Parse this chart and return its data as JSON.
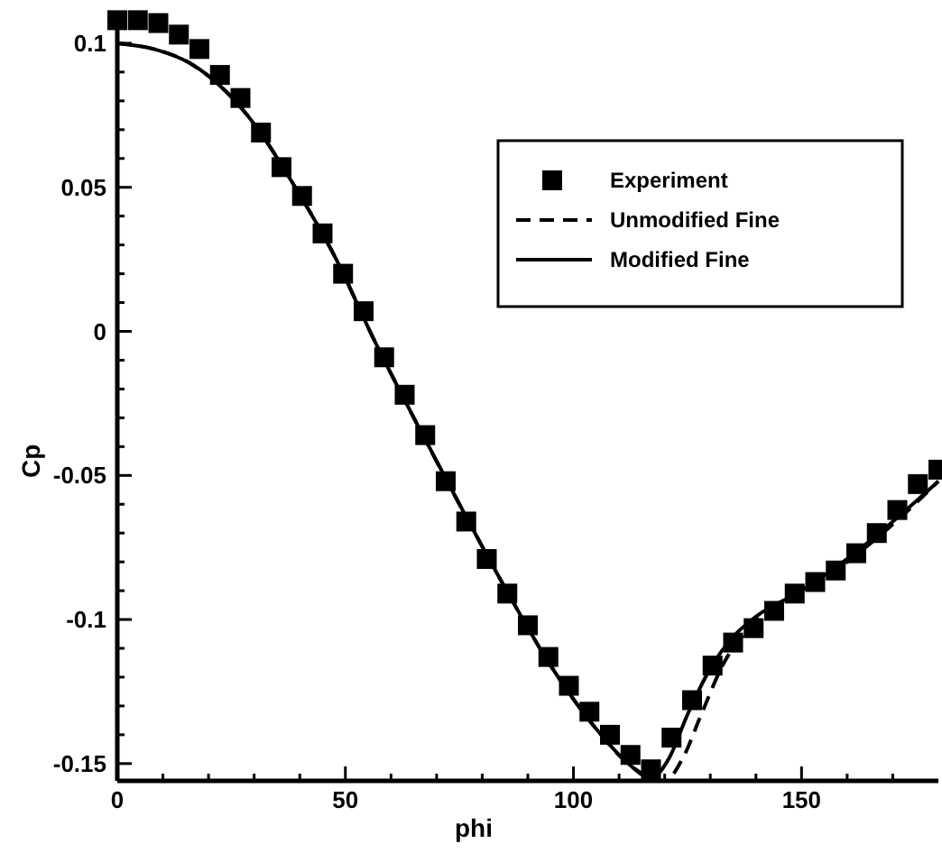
{
  "chart_data": {
    "type": "line",
    "xlabel": "phi",
    "ylabel": "Cp",
    "xlim": [
      0,
      180
    ],
    "ylim": [
      -0.156,
      0.11
    ],
    "xticks": [
      0,
      {
        "value": 10,
        "label": null
      },
      {
        "value": 20,
        "label": null
      },
      {
        "value": 30,
        "label": null
      },
      {
        "value": 40,
        "label": null
      },
      50,
      {
        "value": 60,
        "label": null
      },
      {
        "value": 70,
        "label": null
      },
      {
        "value": 80,
        "label": null
      },
      {
        "value": 90,
        "label": null
      },
      100,
      {
        "value": 110,
        "label": null
      },
      {
        "value": 120,
        "label": null
      },
      {
        "value": 130,
        "label": null
      },
      {
        "value": 140,
        "label": null
      },
      150,
      {
        "value": 160,
        "label": null
      },
      {
        "value": 170,
        "label": null
      }
    ],
    "yticks": [
      -0.15,
      {
        "value": -0.14,
        "label": null
      },
      {
        "value": -0.13,
        "label": null
      },
      {
        "value": -0.12,
        "label": null
      },
      {
        "value": -0.11,
        "label": null
      },
      -0.1,
      {
        "value": -0.09,
        "label": null
      },
      {
        "value": -0.08,
        "label": null
      },
      {
        "value": -0.07,
        "label": null
      },
      {
        "value": -0.06,
        "label": null
      },
      -0.05,
      {
        "value": -0.04,
        "label": null
      },
      {
        "value": -0.03,
        "label": null
      },
      {
        "value": -0.02,
        "label": null
      },
      {
        "value": -0.01,
        "label": null
      },
      0,
      {
        "value": 0.01,
        "label": null
      },
      {
        "value": 0.02,
        "label": null
      },
      {
        "value": 0.03,
        "label": null
      },
      {
        "value": 0.04,
        "label": null
      },
      0.05,
      {
        "value": 0.06,
        "label": null
      },
      {
        "value": 0.07,
        "label": null
      },
      {
        "value": 0.08,
        "label": null
      },
      {
        "value": 0.09,
        "label": null
      },
      0.1
    ],
    "grid": false,
    "legend": "top right",
    "series": [
      {
        "name": "Experiment",
        "type": "scatter",
        "marker": "square",
        "color": "#000000",
        "x": [
          0,
          4.5,
          9,
          13.5,
          18,
          22.5,
          27,
          31.5,
          36,
          40.5,
          45,
          49.5,
          54,
          58.5,
          63,
          67.5,
          72,
          76.5,
          81,
          85.5,
          90,
          94.5,
          99,
          103.5,
          108,
          112.5,
          117,
          121.5,
          126,
          130.5,
          135,
          139.5,
          144,
          148.5,
          153,
          157.5,
          162,
          166.5,
          171,
          175.5,
          180
        ],
        "values": [
          0.108,
          0.108,
          0.107,
          0.103,
          0.098,
          0.089,
          0.081,
          0.069,
          0.057,
          0.047,
          0.034,
          0.02,
          0.007,
          -0.009,
          -0.022,
          -0.036,
          -0.052,
          -0.066,
          -0.079,
          -0.091,
          -0.102,
          -0.113,
          -0.123,
          -0.132,
          -0.14,
          -0.147,
          -0.152,
          -0.141,
          -0.128,
          -0.116,
          -0.108,
          -0.103,
          -0.097,
          -0.091,
          -0.087,
          -0.083,
          -0.077,
          -0.07,
          -0.062,
          -0.053,
          -0.048
        ]
      },
      {
        "name": "Unmodified Fine",
        "line_style": "dashed",
        "color": "#000000",
        "x": [
          0,
          8,
          16,
          24,
          30,
          39,
          48,
          56,
          65,
          75,
          85,
          95,
          105,
          112,
          117,
          120,
          124,
          128,
          133,
          138,
          143,
          150,
          160,
          170,
          180
        ],
        "values": [
          0.1,
          0.098,
          0.093,
          0.083,
          0.072,
          0.05,
          0.025,
          -0.002,
          -0.03,
          -0.06,
          -0.089,
          -0.116,
          -0.138,
          -0.15,
          -0.155,
          -0.156,
          -0.148,
          -0.133,
          -0.115,
          -0.104,
          -0.097,
          -0.091,
          -0.08,
          -0.067,
          -0.052
        ]
      },
      {
        "name": "Modified Fine",
        "line_style": "solid",
        "color": "#000000",
        "x": [
          0,
          8,
          16,
          24,
          30,
          39,
          48,
          56,
          65,
          75,
          85,
          95,
          105,
          112,
          117,
          121,
          125,
          130,
          135,
          140,
          150,
          160,
          170,
          180
        ],
        "values": [
          0.1,
          0.098,
          0.093,
          0.083,
          0.072,
          0.05,
          0.025,
          -0.002,
          -0.03,
          -0.06,
          -0.089,
          -0.116,
          -0.138,
          -0.15,
          -0.155,
          -0.148,
          -0.133,
          -0.117,
          -0.106,
          -0.099,
          -0.09,
          -0.079,
          -0.066,
          -0.052
        ]
      }
    ]
  }
}
